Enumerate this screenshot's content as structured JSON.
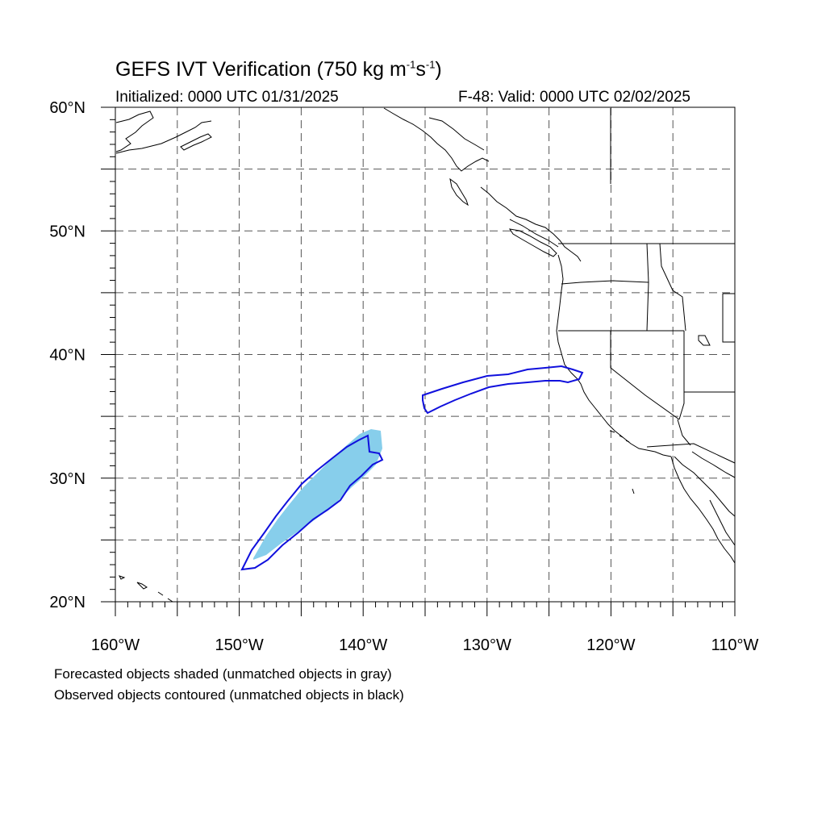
{
  "title": {
    "main": "GEFS IVT Verification (750 kg m",
    "exp1": "-1",
    "mid": "s",
    "exp2": "-1",
    "end": ")"
  },
  "initialized": "Initialized: 0000 UTC 01/31/2025",
  "valid": "F-48: Valid: 0000 UTC 02/02/2025",
  "lat_labels": [
    "60°N",
    "50°N",
    "40°N",
    "30°N",
    "20°N"
  ],
  "lon_labels": [
    "160°W",
    "150°W",
    "140°W",
    "130°W",
    "120°W",
    "110°W"
  ],
  "notes": {
    "forecast": "Forecasted objects shaded (unmatched objects in gray)",
    "observed": "Observed objects contoured (unmatched objects in black)"
  },
  "map": {
    "lat_range": [
      20,
      60
    ],
    "lon_range": [
      -160,
      -110
    ],
    "grid_lat_step": 5,
    "grid_lon_step": 5,
    "grid_style": "dashed gray"
  },
  "colors": {
    "forecast_fill": "#87ceeb",
    "observed_contour": "#1010dd",
    "coastline": "#000000"
  }
}
